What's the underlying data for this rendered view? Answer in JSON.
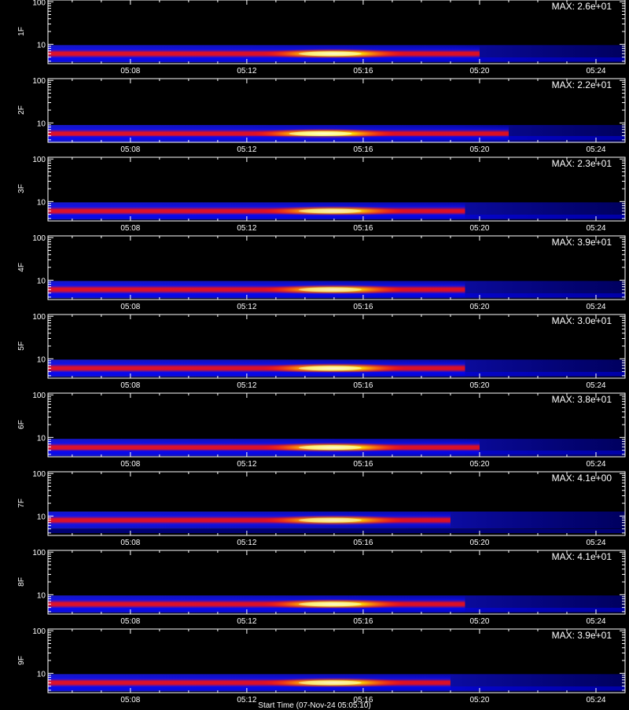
{
  "chart_data": {
    "type": "heatmap",
    "colormap": "black-blue-red-yellow-white",
    "x_ticks": [
      "05:08",
      "05:12",
      "05:16",
      "05:20",
      "05:24"
    ],
    "x_range": [
      "05:05:10",
      "05:25:00"
    ],
    "y_scale": "log",
    "y_tick_labels": [
      "100",
      "10"
    ],
    "ylim": [
      3.5,
      110
    ],
    "x_label": "Start Time (07-Nov-24 05:05:10)",
    "panels": [
      {
        "name": "1F",
        "max_label": "MAX: 2.6e+01",
        "band_y": 6.0,
        "peak_time": "05:15:00",
        "band_end": "05:20:00",
        "peak_intensity": 0.95
      },
      {
        "name": "2F",
        "max_label": "MAX: 2.2e+01",
        "band_y": 5.6,
        "peak_time": "05:14:40",
        "band_end": "05:21:00",
        "peak_intensity": 1.0
      },
      {
        "name": "3F",
        "max_label": "MAX: 2.3e+01",
        "band_y": 6.0,
        "peak_time": "05:15:00",
        "band_end": "05:19:30",
        "peak_intensity": 0.85
      },
      {
        "name": "4F",
        "max_label": "MAX: 3.9e+01",
        "band_y": 6.0,
        "peak_time": "05:15:00",
        "band_end": "05:19:30",
        "peak_intensity": 0.85
      },
      {
        "name": "5F",
        "max_label": "MAX: 3.0e+01",
        "band_y": 6.0,
        "peak_time": "05:15:00",
        "band_end": "05:19:30",
        "peak_intensity": 0.95
      },
      {
        "name": "6F",
        "max_label": "MAX: 3.8e+01",
        "band_y": 5.8,
        "peak_time": "05:15:00",
        "band_end": "05:20:00",
        "peak_intensity": 0.95
      },
      {
        "name": "7F",
        "max_label": "MAX: 4.1e+00",
        "band_y": 8.0,
        "peak_time": "05:15:00",
        "band_end": "05:19:00",
        "peak_intensity": 0.85
      },
      {
        "name": "8F",
        "max_label": "MAX: 4.1e+01",
        "band_y": 6.0,
        "peak_time": "05:15:00",
        "band_end": "05:19:30",
        "peak_intensity": 0.95
      },
      {
        "name": "9F",
        "max_label": "MAX: 3.9e+01",
        "band_y": 6.0,
        "peak_time": "05:15:00",
        "band_end": "05:19:00",
        "peak_intensity": 0.9
      }
    ]
  }
}
